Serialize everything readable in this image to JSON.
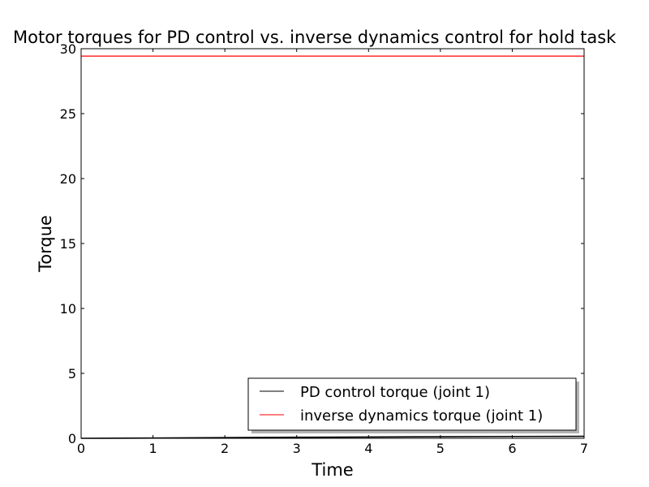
{
  "chart_data": {
    "type": "line",
    "title": "Motor torques for PD control vs. inverse dynamics control for hold task",
    "xlabel": "Time",
    "ylabel": "Torque",
    "xlim": [
      0,
      7
    ],
    "ylim": [
      0,
      30
    ],
    "xticks": [
      "0",
      "1",
      "2",
      "3",
      "4",
      "5",
      "6",
      "7"
    ],
    "yticks": [
      "0",
      "5",
      "10",
      "15",
      "20",
      "25",
      "30"
    ],
    "grid": false,
    "legend_position": "lower-right",
    "series": [
      {
        "name": "PD control torque (joint 1)",
        "color": "#000000",
        "x": [
          0,
          1,
          2,
          3,
          4,
          5,
          6,
          7
        ],
        "y": [
          0,
          0.02,
          0.05,
          0.08,
          0.1,
          0.12,
          0.14,
          0.15
        ]
      },
      {
        "name": "inverse dynamics torque (joint 1)",
        "color": "#ff0000",
        "x": [
          0,
          7
        ],
        "y": [
          29.43,
          29.43
        ]
      }
    ]
  }
}
